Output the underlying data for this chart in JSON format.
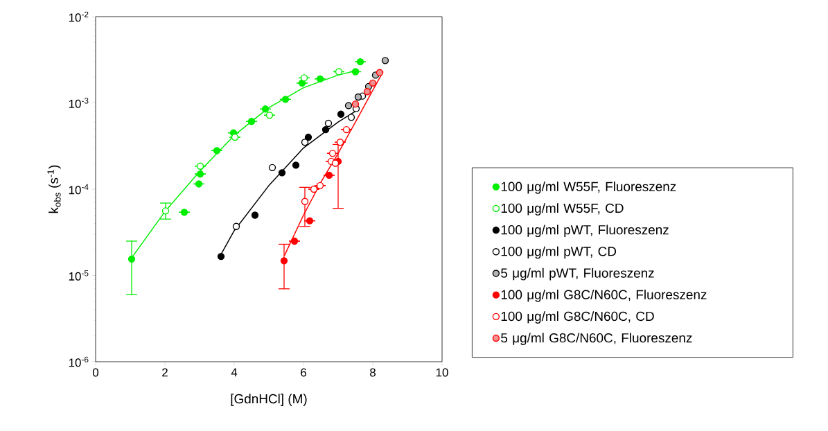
{
  "chart_data": {
    "type": "scatter",
    "xlabel": "[GdnHCl] (M)",
    "ylabel": "k$_{obs}$ (s$^{-1}$)",
    "log": "y",
    "xlim": [
      0,
      10
    ],
    "ylim": [
      1e-06,
      0.01
    ],
    "xticks": [
      0,
      2,
      4,
      6,
      8,
      10
    ],
    "yticks": [
      {
        "value": 1e-06,
        "label": "10$^{-6}$"
      },
      {
        "value": 1e-05,
        "label": "10$^{-5}$"
      },
      {
        "value": 0.0001,
        "label": "10$^{-4}$"
      },
      {
        "value": 0.001,
        "label": "10$^{-3}$"
      },
      {
        "value": 0.01,
        "label": "10$^{-2}$"
      }
    ],
    "legend": "right",
    "marker": "circle",
    "grid": false,
    "series": [
      {
        "name": "100 μg/ml W55F, Fluoreszenz",
        "color": "#00ee00",
        "colors": [
          "#00ee00",
          "#00ee00",
          "#00ee00",
          "#00ee00",
          "#00ee00",
          "#00ee00",
          "#00ee00",
          "#00ee00",
          "#00ee00",
          "#00ee00",
          "#00ee00",
          "#00ee00",
          "#00ee00"
        ],
        "x": [
          1.04,
          2.56,
          2.98,
          3.02,
          3.5,
          3.98,
          4.5,
          4.9,
          5.48,
          5.96,
          6.48,
          7.5,
          7.64
        ],
        "values": [
          1.55e-05,
          5.4e-05,
          0.000115,
          0.00015,
          0.00028,
          0.00045,
          0.00061,
          0.00085,
          0.0011,
          0.0017,
          0.0019,
          0.0023,
          0.003
        ],
        "errors": [
          [
            6e-06,
            2.5e-05
          ],
          null,
          null,
          null,
          null,
          null,
          null,
          null,
          null,
          null,
          null,
          null,
          null
        ]
      },
      {
        "name": "100 μg/ml W55F, CD",
        "color": "#00ee00",
        "colors": [
          "#ffffff",
          "#ffffff",
          "#ffffff",
          "#ffffff",
          "#ffffff",
          "#ffffff"
        ],
        "x": [
          2.02,
          3.02,
          4.02,
          5.02,
          6.02,
          7.02
        ],
        "values": [
          5.6e-05,
          0.000185,
          0.0004,
          0.00072,
          0.00195,
          0.0023
        ],
        "errors": [
          [
            4.5e-05,
            6.9e-05
          ],
          null,
          null,
          null,
          null,
          null
        ]
      },
      {
        "name": "100 μg/ml pWT, Fluoreszenz",
        "color": "#000000",
        "colors": [
          "#000000",
          "#000000",
          "#000000",
          "#000000",
          "#000000",
          "#000000",
          "#000000"
        ],
        "x": [
          3.62,
          4.6,
          5.38,
          5.78,
          6.14,
          6.64,
          7.08
        ],
        "values": [
          1.66e-05,
          5e-05,
          0.000155,
          0.00019,
          0.0004,
          0.00049,
          0.00074
        ]
      },
      {
        "name": "100 μg/ml pWT, CD",
        "color": "#000000",
        "colors": [
          "#ffffff",
          "#ffffff",
          "#ffffff",
          "#ffffff",
          "#ffffff",
          "#ffffff",
          "#ffffff"
        ],
        "x": [
          4.06,
          5.1,
          6.04,
          6.72,
          7.38,
          7.52,
          7.7
        ],
        "values": [
          3.7e-05,
          0.000178,
          0.00035,
          0.00058,
          0.00068,
          0.00086,
          0.0012
        ]
      },
      {
        "name": "5 μg/ml pWT, Fluoreszenz",
        "color": "#000000",
        "colors": [
          "#b4b4b4",
          "#b4b4b4",
          "#b4b4b4",
          "#b4b4b4",
          "#b4b4b4"
        ],
        "x": [
          7.3,
          7.58,
          7.88,
          8.08,
          8.36
        ],
        "values": [
          0.00093,
          0.00117,
          0.00155,
          0.0021,
          0.0031
        ]
      },
      {
        "name": "100 μg/ml G8C/N60C, Fluoreszenz",
        "color": "#ff0000",
        "colors": [
          "#ff0000",
          "#ff0000",
          "#ff0000",
          "#ff0000",
          "#ff0000"
        ],
        "x": [
          5.44,
          5.74,
          6.18,
          6.74,
          7.0
        ],
        "values": [
          1.48e-05,
          2.5e-05,
          4.3e-05,
          0.000145,
          0.00021
        ],
        "errors": [
          [
            7e-06,
            2.3e-05
          ],
          null,
          null,
          null,
          [
            6e-05,
            0.00033
          ]
        ]
      },
      {
        "name": "100 μg/ml G8C/N60C, CD",
        "color": "#ff0000",
        "colors": [
          "#ffffff",
          "#ffffff",
          "#ffffff",
          "#ffffff",
          "#ffffff",
          "#ffffff",
          "#ffffff",
          "#ffffff"
        ],
        "x": [
          6.04,
          6.3,
          6.48,
          6.8,
          6.84,
          6.92,
          7.06,
          7.24
        ],
        "values": [
          7.2e-05,
          0.0001,
          0.00011,
          0.00021,
          0.00026,
          0.0002,
          0.00035,
          0.00049
        ],
        "errors": [
          [
            3.7e-05,
            0.000105
          ],
          null,
          null,
          null,
          null,
          null,
          null,
          null
        ]
      },
      {
        "name": "5 μg/ml G8C/N60C, Fluoreszenz",
        "color": "#ff0000",
        "colors": [
          "#f09090",
          "#f09090",
          "#f09090",
          "#f09090"
        ],
        "x": [
          7.5,
          7.84,
          8.0,
          8.2
        ],
        "values": [
          0.00097,
          0.00135,
          0.0017,
          0.00225
        ]
      },
      {
        "type": "line",
        "marker": "none",
        "color": "#00ee00",
        "x": [
          1.04,
          2,
          3,
          4,
          5,
          6,
          7,
          7.6
        ],
        "values": [
          1.6e-05,
          5.5e-05,
          0.00016,
          0.00042,
          0.00088,
          0.0015,
          0.0021,
          0.0024
        ]
      },
      {
        "type": "line",
        "marker": "none",
        "color": "#000000",
        "x": [
          3.6,
          4,
          5,
          6,
          7,
          7.6
        ],
        "values": [
          1.7e-05,
          3.3e-05,
          0.00011,
          0.0003,
          0.0006,
          0.00085
        ]
      },
      {
        "type": "line",
        "marker": "none",
        "color": "#ff0000",
        "x": [
          5.45,
          6,
          6.5,
          7,
          7.5,
          8,
          8.3
        ],
        "values": [
          1.7e-05,
          5e-05,
          0.00012,
          0.00026,
          0.0006,
          0.0014,
          0.0023
        ]
      }
    ]
  }
}
